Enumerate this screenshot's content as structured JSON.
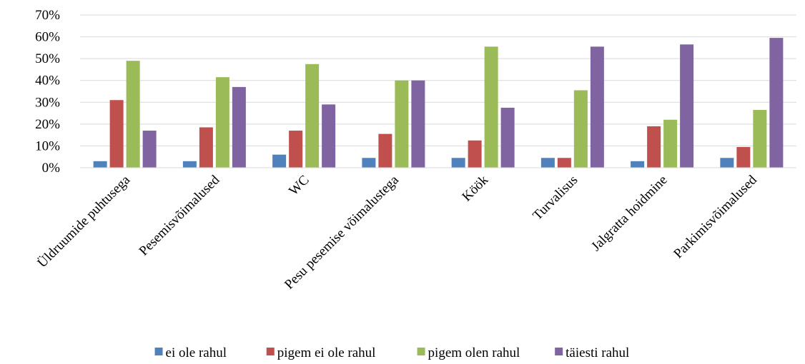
{
  "chart_data": {
    "type": "bar",
    "categories": [
      "Üldruumide puhtusega",
      "Pesemisvõimalused",
      "WC",
      "Pesu pesemise võimalustega",
      "Köök",
      "Turvalisus",
      "Jalgratta hoidmine",
      "Parkimisvõimalused"
    ],
    "series": [
      {
        "name": "ei ole rahul",
        "color": "#4F81BD",
        "values": [
          3,
          3,
          6,
          4.5,
          4.5,
          4.5,
          3,
          4.5
        ]
      },
      {
        "name": "pigem ei ole rahul",
        "color": "#C0504D",
        "values": [
          31,
          18.5,
          17,
          15.5,
          12.5,
          4.5,
          19,
          9.5
        ]
      },
      {
        "name": "pigem olen rahul",
        "color": "#9BBB59",
        "values": [
          49,
          41.5,
          47.5,
          40,
          55.5,
          35.5,
          22,
          26.5
        ]
      },
      {
        "name": "täiesti rahul",
        "color": "#8064A2",
        "values": [
          17,
          37,
          29,
          40,
          27.5,
          55.5,
          56.5,
          59.5
        ]
      }
    ],
    "y_ticks": [
      "0%",
      "10%",
      "20%",
      "30%",
      "40%",
      "50%",
      "60%",
      "70%"
    ],
    "ylim": [
      0,
      70
    ],
    "grid": true,
    "legend_position": "bottom",
    "title": "",
    "xlabel": "",
    "ylabel": ""
  }
}
